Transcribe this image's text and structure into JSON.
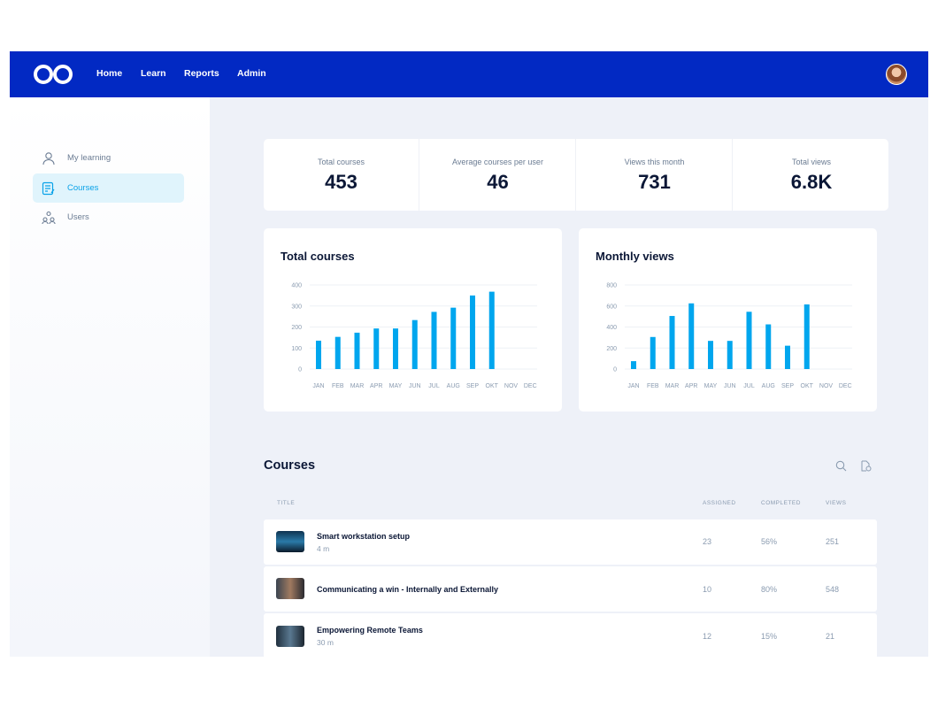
{
  "nav": {
    "items": [
      "Home",
      "Learn",
      "Reports",
      "Admin"
    ],
    "brand_color": "#0229c3"
  },
  "sidebar": {
    "items": [
      {
        "label": "My learning",
        "icon": "person-icon"
      },
      {
        "label": "Courses",
        "icon": "document-edit-icon",
        "active": true
      },
      {
        "label": "Users",
        "icon": "users-icon"
      }
    ]
  },
  "stats": [
    {
      "label": "Total courses",
      "value": "453"
    },
    {
      "label": "Average courses per user",
      "value": "46"
    },
    {
      "label": "Views this month",
      "value": "731"
    },
    {
      "label": "Total views",
      "value": "6.8K"
    }
  ],
  "chart_data": [
    {
      "type": "bar",
      "title": "Total courses",
      "categories": [
        "JAN",
        "FEB",
        "MAR",
        "APR",
        "MAY",
        "JUN",
        "JUL",
        "AUG",
        "SEP",
        "OKT",
        "NOV",
        "DEC"
      ],
      "values": [
        135,
        153,
        173,
        193,
        193,
        233,
        272,
        292,
        350,
        368,
        null,
        null
      ],
      "yticks": [
        0,
        100,
        200,
        300,
        400
      ],
      "ylim": [
        0,
        400
      ],
      "grid": true,
      "color": "#00a6ee"
    },
    {
      "type": "bar",
      "title": "Monthly views",
      "categories": [
        "JAN",
        "FEB",
        "MAR",
        "APR",
        "MAY",
        "JUN",
        "JUL",
        "AUG",
        "SEP",
        "OKT",
        "NOV",
        "DEC"
      ],
      "values": [
        75,
        305,
        505,
        625,
        268,
        268,
        545,
        425,
        222,
        615,
        null,
        null
      ],
      "yticks": [
        0,
        200,
        400,
        600,
        800
      ],
      "ylim": [
        0,
        800
      ],
      "grid": true,
      "color": "#00a6ee"
    }
  ],
  "courses": {
    "title": "Courses",
    "columns": [
      "TITLE",
      "ASSIGNED",
      "COMPLETED",
      "VIEWS"
    ],
    "rows": [
      {
        "title": "Smart workstation setup",
        "duration": "4 m",
        "assigned": "23",
        "completed": "56%",
        "views": "251"
      },
      {
        "title": "Communicating a win - Internally and Externally",
        "duration": "",
        "assigned": "10",
        "completed": "80%",
        "views": "548"
      },
      {
        "title": "Empowering Remote Teams",
        "duration": "30 m",
        "assigned": "12",
        "completed": "15%",
        "views": "21"
      }
    ]
  }
}
